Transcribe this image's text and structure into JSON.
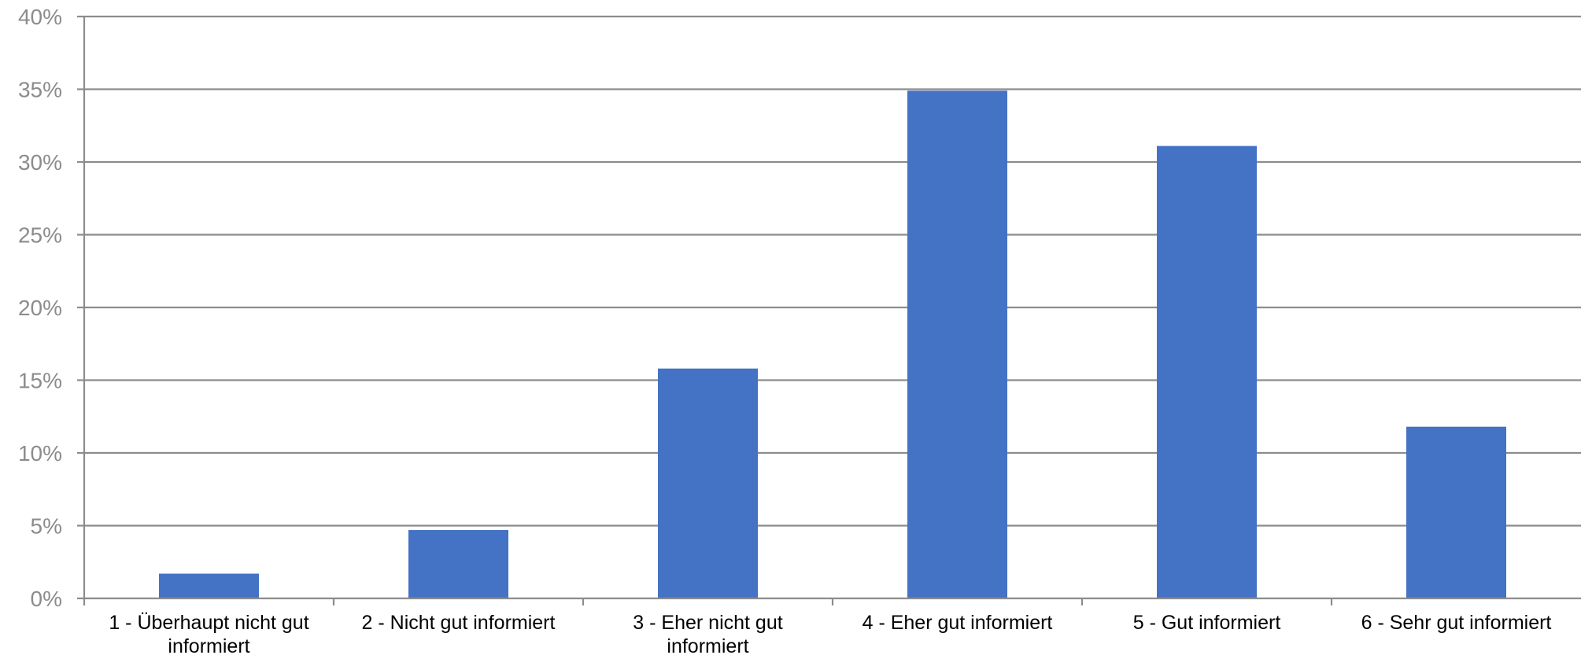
{
  "chart_data": {
    "type": "bar",
    "categories": [
      [
        "1 - Überhaupt nicht gut",
        "informiert"
      ],
      [
        "2 - Nicht gut informiert"
      ],
      [
        "3 - Eher nicht gut",
        "informiert"
      ],
      [
        "4 - Eher gut informiert"
      ],
      [
        "5 - Gut informiert"
      ],
      [
        "6 - Sehr gut informiert"
      ]
    ],
    "values": [
      1.7,
      4.7,
      15.8,
      34.9,
      31.1,
      11.8
    ],
    "ylim": [
      0,
      40
    ],
    "yticks": [
      "0%",
      "5%",
      "10%",
      "15%",
      "20%",
      "25%",
      "30%",
      "35%",
      "40%"
    ],
    "grid": true,
    "bar_color": "#4472c4",
    "grid_color": "#8c8c8c",
    "axis_color": "#8c8c8c"
  }
}
